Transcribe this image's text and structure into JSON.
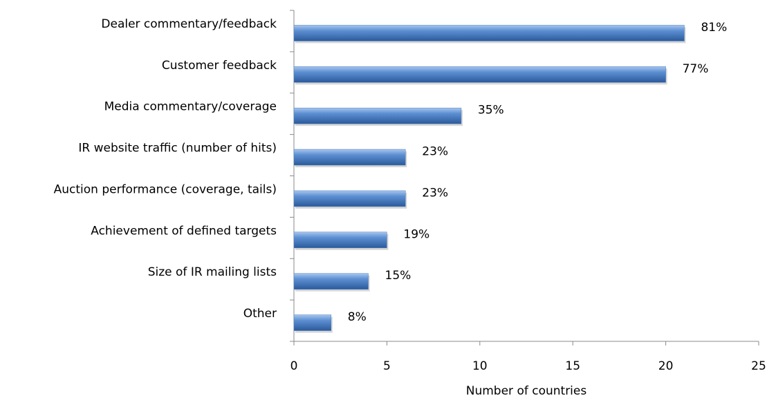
{
  "chart_data": {
    "type": "barh",
    "categories": [
      "Dealer commentary/feedback",
      "Customer feedback",
      "Media commentary/coverage",
      "IR website traffic (number of hits)",
      "Auction performance (coverage, tails)",
      "Achievement of defined targets",
      "Size of IR mailing lists",
      "Other"
    ],
    "values": [
      21,
      20,
      9,
      6,
      6,
      5,
      4,
      2
    ],
    "value_labels": [
      "81%",
      "77%",
      "35%",
      "23%",
      "23%",
      "19%",
      "15%",
      "8%"
    ],
    "color": "#4f81bd",
    "xlabel": "Number of countries",
    "xlim": [
      0,
      25
    ],
    "xticks": [
      0,
      5,
      10,
      15,
      20,
      25
    ],
    "grid": false
  }
}
